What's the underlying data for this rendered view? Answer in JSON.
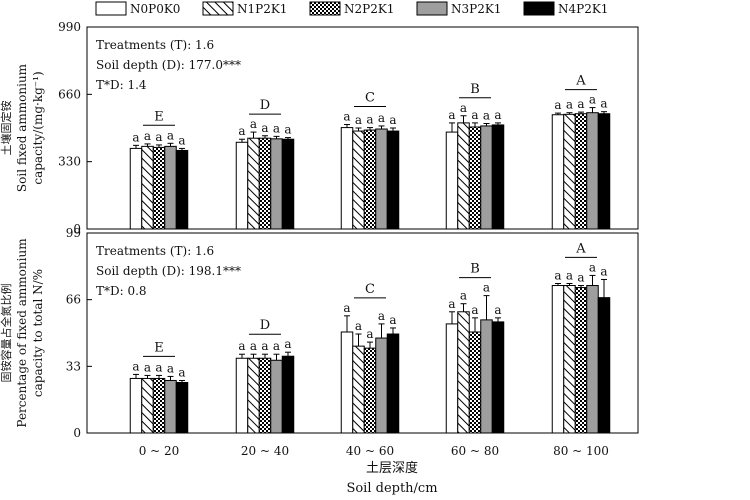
{
  "legend": {
    "position": "top",
    "entries": [
      {
        "label": "N0P0K0",
        "pattern": "white"
      },
      {
        "label": "N1P2K1",
        "pattern": "hatch"
      },
      {
        "label": "N2P2K1",
        "pattern": "checker"
      },
      {
        "label": "N3P2K1",
        "pattern": "gray"
      },
      {
        "label": "N4P2K1",
        "pattern": "black"
      }
    ]
  },
  "xlabel_cn": "土层深度",
  "xlabel_en": "Soil depth/cm",
  "colors": {
    "gray": "#9e9e9e",
    "black": "#000000",
    "white": "#ffffff"
  },
  "chart_data": [
    {
      "type": "bar",
      "categories": [
        "0 ~ 20",
        "20 ~ 40",
        "40 ~ 60",
        "60 ~ 80",
        "80 ~ 100"
      ],
      "ylabel_lines": [
        "Soil fixed ammonium",
        "capacity/(mg·kg⁻¹)"
      ],
      "ylabel_cn_partial": "土壤固定铵",
      "ylim": [
        0,
        990
      ],
      "yticks": [
        "0",
        "330",
        "660",
        "990"
      ],
      "annotations": [
        "Treatments (T): 1.6",
        "Soil depth (D): 177.0***",
        "T*D: 1.4"
      ],
      "group_letters": [
        "E",
        "D",
        "C",
        "B",
        "A"
      ],
      "bar_letters": "a",
      "series": [
        {
          "name": "N0P0K0",
          "values": [
            395,
            425,
            497,
            475,
            560
          ],
          "errors": [
            15,
            15,
            15,
            45,
            8
          ]
        },
        {
          "name": "N1P2K1",
          "values": [
            405,
            445,
            480,
            520,
            562
          ],
          "errors": [
            12,
            30,
            15,
            35,
            8
          ]
        },
        {
          "name": "N2P2K1",
          "values": [
            400,
            445,
            485,
            500,
            565
          ],
          "errors": [
            12,
            12,
            12,
            20,
            8
          ]
        },
        {
          "name": "N3P2K1",
          "values": [
            405,
            442,
            490,
            505,
            570
          ],
          "errors": [
            15,
            12,
            15,
            12,
            25
          ]
        },
        {
          "name": "N4P2K1",
          "values": [
            385,
            440,
            480,
            510,
            565
          ],
          "errors": [
            10,
            8,
            15,
            10,
            10
          ]
        }
      ]
    },
    {
      "type": "bar",
      "categories": [
        "0 ~ 20",
        "20 ~ 40",
        "40 ~ 60",
        "60 ~ 80",
        "80 ~ 100"
      ],
      "ylabel_lines": [
        "Percentage of fixed ammonium",
        "capacity to total N/%"
      ],
      "ylabel_cn_partial": "固铵容量占全氮比例",
      "ylim": [
        0,
        99
      ],
      "yticks": [
        "0",
        "33",
        "66",
        "99"
      ],
      "annotations": [
        "Treatments (T): 1.6",
        "Soil depth (D): 198.1***",
        "T*D: 0.8"
      ],
      "group_letters": [
        "E",
        "D",
        "C",
        "B",
        "A"
      ],
      "bar_letters": "a",
      "series": [
        {
          "name": "N0P0K0",
          "values": [
            27,
            37,
            50,
            54,
            73
          ],
          "errors": [
            2,
            2,
            8,
            6,
            1
          ]
        },
        {
          "name": "N1P2K1",
          "values": [
            27,
            37,
            43,
            60,
            73
          ],
          "errors": [
            1.5,
            2,
            6,
            4,
            1
          ]
        },
        {
          "name": "N2P2K1",
          "values": [
            27,
            37,
            42,
            50,
            72
          ],
          "errors": [
            1.5,
            2,
            3,
            7,
            1
          ]
        },
        {
          "name": "N3P2K1",
          "values": [
            26,
            36,
            47,
            56,
            73
          ],
          "errors": [
            2,
            3,
            7,
            12,
            5
          ]
        },
        {
          "name": "N4P2K1",
          "values": [
            25,
            38,
            49,
            55,
            67
          ],
          "errors": [
            1,
            2,
            3,
            2,
            9
          ]
        }
      ]
    }
  ]
}
